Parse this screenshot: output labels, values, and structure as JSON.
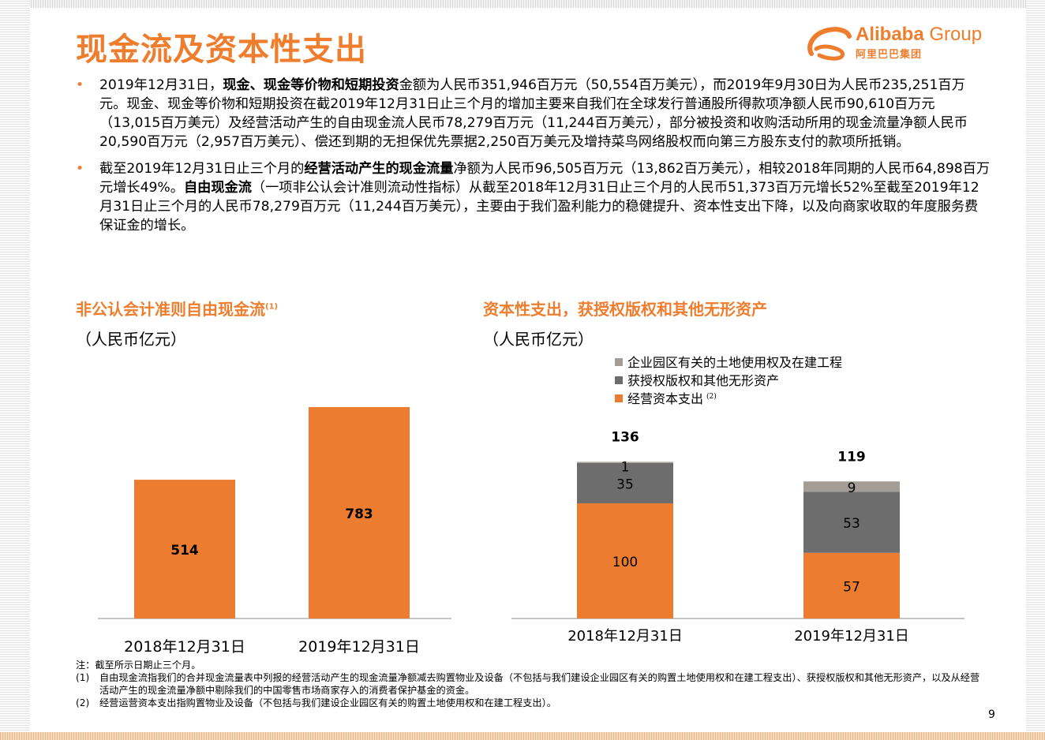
{
  "header": {
    "title": "现金流及资本性支出"
  },
  "logo": {
    "brand": "Alibaba",
    "group": "Group",
    "sub": "阿里巴巴集团"
  },
  "colors": {
    "accent": "#ee7d2d",
    "orange_bar": "#ec7c30",
    "gray_bar": "#6d6d6d",
    "light_gray_bar": "#a39d96"
  },
  "bullets": [
    {
      "pre": "2019年12月31日，",
      "bold": "现金、现金等价物和短期投资",
      "post": "金额为人民币351,946百万元（50,554百万美元），而2019年9月30日为人民币235,251百万元。现金、现金等价物和短期投资在截2019年12月31日止三个月的增加主要来自我们在全球发行普通股所得款项净额人民币90,610百万元（13,015百万美元）及经营活动产生的自由现金流人民币78,279百万元（11,244百万美元），部分被投资和收购活动所用的现金流量净额人民币20,590百万元（2,957百万美元）、偿还到期的无担保优先票据2,250百万美元及增持菜鸟网络股权而向第三方股东支付的款项所抵销。"
    },
    {
      "pre": "截至2019年12月31日止三个月的",
      "bold": "经营活动产生的现金流量",
      "mid": "净额为人民币96,505百万元（13,862百万美元），相较2018年同期的人民币64,898百万元增长49%。",
      "bold2": "自由现金流",
      "post": "（一项非公认会计准则流动性指标）从截至2018年12月31日止三个月的人民币51,373百万元增长52%至截至2019年12月31日止三个月的人民币78,279百万元（11,244百万美元），主要由于我们盈利能力的稳健提升、资本性支出下降，以及向商家收取的年度服务费保证金的增长。"
    }
  ],
  "left_chart": {
    "title": "非公认会计准则自由现金流",
    "title_note": "(1)",
    "unit": "（人民币亿元）"
  },
  "right_chart": {
    "title": "资本性支出，获授权版权和其他无形资产",
    "unit": "（人民币亿元）"
  },
  "chart_data": [
    {
      "type": "bar",
      "categories": [
        "2018年12月31日",
        "2019年12月31日"
      ],
      "values": [
        514,
        783
      ],
      "ylim": [
        0,
        800
      ]
    },
    {
      "type": "bar",
      "stacked": true,
      "categories": [
        "2018年12月31日",
        "2019年12月31日"
      ],
      "series": [
        {
          "name": "经营资本支出",
          "note": "(2)",
          "values": [
            100,
            57
          ]
        },
        {
          "name": "获授权版权和其他无形资产",
          "values": [
            35,
            53
          ]
        },
        {
          "name": "企业园区有关的土地使用权及在建工程",
          "values": [
            1,
            9
          ]
        }
      ],
      "totals": [
        136,
        119
      ],
      "legend": "top-left"
    }
  ],
  "notes": {
    "header": "注：截至所示日期止三个月。",
    "items": [
      {
        "num": "(1)",
        "text": "自由现金流指我们的合并现金流量表中列报的经营活动产生的现金流量净额减去购置物业及设备（不包括与我们建设企业园区有关的购置土地使用权和在建工程支出）、获授权版权和其他无形资产，以及从经营活动产生的现金流量净额中剔除我们的中国零售市场商家存入的消费者保护基金的资金。"
      },
      {
        "num": "(2)",
        "text": "经营运营资本支出指购置物业及设备（不包括与我们建设企业园区有关的购置土地使用权和在建工程支出）。"
      }
    ]
  },
  "page_number": "9"
}
